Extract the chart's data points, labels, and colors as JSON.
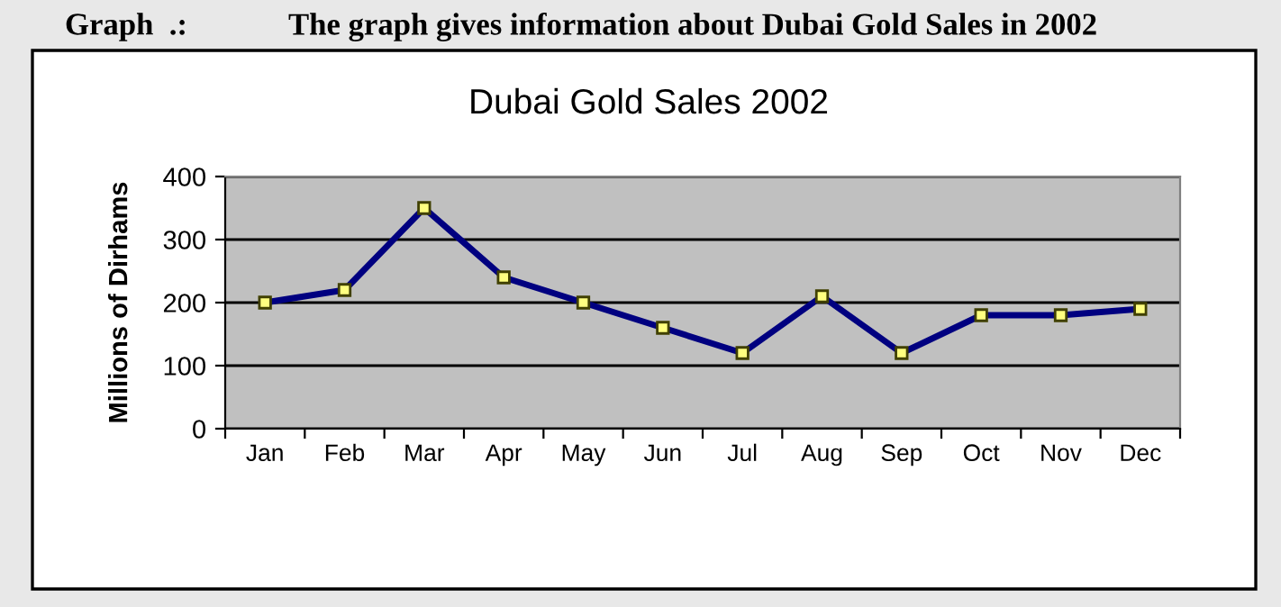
{
  "chart_data": {
    "type": "line",
    "title": "Dubai Gold Sales 2002",
    "ylabel": "Millions of Dirhams",
    "annotations": [
      "Graph  .:",
      "The graph gives information about Dubai Gold Sales in 2002"
    ],
    "categories": [
      "Jan",
      "Feb",
      "Mar",
      "Apr",
      "May",
      "Jun",
      "Jul",
      "Aug",
      "Sep",
      "Oct",
      "Nov",
      "Dec"
    ],
    "series": [
      {
        "color": "#000080",
        "values": [
          200,
          220,
          350,
          240,
          200,
          160,
          120,
          210,
          120,
          180,
          180,
          190
        ]
      }
    ],
    "ylim": [
      0,
      400
    ],
    "yticks": [
      0,
      100,
      200,
      300,
      400
    ],
    "grid": "y",
    "marker": "square",
    "line_style": "solid"
  }
}
